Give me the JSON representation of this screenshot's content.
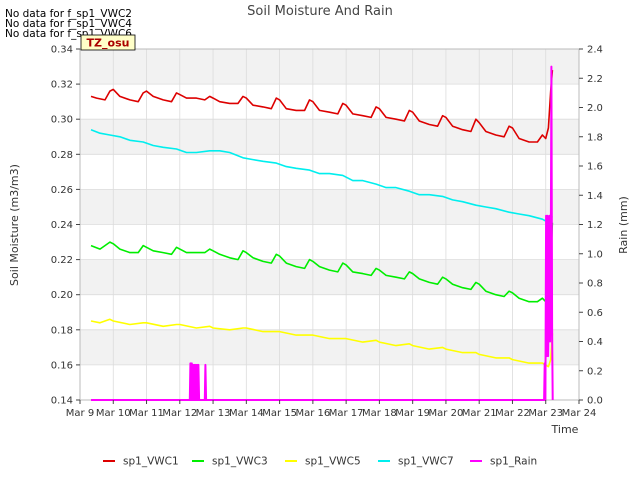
{
  "notes": [
    "No data for f_sp1_VWC2",
    "No data for f_sp1_VWC4",
    "No data for f_sp1_VWC6"
  ],
  "badge": "TZ_osu",
  "colors": {
    "background": "#ffffff",
    "band": "#f2f2f2",
    "grid": "#dcdcdc",
    "badge_fill": "#ffffc8",
    "badge_text": "#aa0000"
  },
  "chart_data": {
    "type": "line",
    "title": "Soil Moisture And Rain",
    "xlabel": "Time",
    "ylabel": "Soil Moisture (m3/m3)",
    "y2label": "Rain (mm)",
    "x_range": [
      9.0,
      24.0
    ],
    "xticks": [
      {
        "x": 9,
        "label": "Mar 9"
      },
      {
        "x": 10,
        "label": "Mar 10"
      },
      {
        "x": 11,
        "label": "Mar 11"
      },
      {
        "x": 12,
        "label": "Mar 12"
      },
      {
        "x": 13,
        "label": "Mar 13"
      },
      {
        "x": 14,
        "label": "Mar 14"
      },
      {
        "x": 15,
        "label": "Mar 15"
      },
      {
        "x": 16,
        "label": "Mar 16"
      },
      {
        "x": 17,
        "label": "Mar 17"
      },
      {
        "x": 18,
        "label": "Mar 18"
      },
      {
        "x": 19,
        "label": "Mar 19"
      },
      {
        "x": 20,
        "label": "Mar 20"
      },
      {
        "x": 21,
        "label": "Mar 21"
      },
      {
        "x": 22,
        "label": "Mar 22"
      },
      {
        "x": 23,
        "label": "Mar 23"
      },
      {
        "x": 24,
        "label": "Mar 24"
      }
    ],
    "ylim": [
      0.14,
      0.34
    ],
    "yticks": [
      0.14,
      0.16,
      0.18,
      0.2,
      0.22,
      0.24,
      0.26,
      0.28,
      0.3,
      0.32,
      0.34
    ],
    "y2lim": [
      0.0,
      2.4
    ],
    "y2ticks": [
      0.0,
      0.2,
      0.4,
      0.6,
      0.8,
      1.0,
      1.2,
      1.4,
      1.6,
      1.8,
      2.0,
      2.2,
      2.4
    ],
    "grid": true,
    "legend_position": "bottom",
    "series": [
      {
        "name": "sp1_VWC1",
        "color": "#dd0000",
        "axis": "left",
        "x": [
          9.33,
          9.5,
          9.75,
          9.9,
          10.0,
          10.2,
          10.5,
          10.75,
          10.9,
          11.0,
          11.2,
          11.5,
          11.75,
          11.9,
          12.0,
          12.2,
          12.5,
          12.75,
          12.9,
          13.0,
          13.2,
          13.5,
          13.75,
          13.9,
          14.0,
          14.2,
          14.5,
          14.75,
          14.9,
          15.0,
          15.2,
          15.5,
          15.75,
          15.9,
          16.0,
          16.2,
          16.5,
          16.75,
          16.9,
          17.0,
          17.2,
          17.5,
          17.75,
          17.9,
          18.0,
          18.2,
          18.5,
          18.75,
          18.9,
          19.0,
          19.2,
          19.5,
          19.75,
          19.9,
          20.0,
          20.2,
          20.5,
          20.75,
          20.9,
          21.0,
          21.2,
          21.5,
          21.75,
          21.9,
          22.0,
          22.2,
          22.5,
          22.75,
          22.9,
          23.0,
          23.08,
          23.15,
          23.2
        ],
        "values": [
          0.313,
          0.312,
          0.311,
          0.316,
          0.317,
          0.313,
          0.311,
          0.31,
          0.315,
          0.316,
          0.313,
          0.311,
          0.31,
          0.315,
          0.314,
          0.312,
          0.312,
          0.311,
          0.313,
          0.312,
          0.31,
          0.309,
          0.309,
          0.313,
          0.312,
          0.308,
          0.307,
          0.306,
          0.312,
          0.311,
          0.306,
          0.305,
          0.305,
          0.311,
          0.31,
          0.305,
          0.304,
          0.303,
          0.309,
          0.308,
          0.303,
          0.302,
          0.301,
          0.307,
          0.306,
          0.301,
          0.3,
          0.299,
          0.305,
          0.304,
          0.299,
          0.297,
          0.296,
          0.302,
          0.301,
          0.296,
          0.294,
          0.293,
          0.3,
          0.298,
          0.293,
          0.291,
          0.29,
          0.296,
          0.295,
          0.289,
          0.287,
          0.287,
          0.291,
          0.289,
          0.295,
          0.316,
          0.328
        ]
      },
      {
        "name": "sp1_VWC3",
        "color": "#00ee00",
        "axis": "left",
        "x": [
          9.33,
          9.6,
          9.9,
          10.0,
          10.2,
          10.5,
          10.75,
          10.9,
          11.0,
          11.2,
          11.5,
          11.75,
          11.9,
          12.0,
          12.2,
          12.5,
          12.75,
          12.9,
          13.0,
          13.2,
          13.5,
          13.75,
          13.9,
          14.0,
          14.2,
          14.5,
          14.75,
          14.9,
          15.0,
          15.2,
          15.5,
          15.75,
          15.9,
          16.0,
          16.2,
          16.5,
          16.75,
          16.9,
          17.0,
          17.2,
          17.5,
          17.75,
          17.9,
          18.0,
          18.2,
          18.5,
          18.75,
          18.9,
          19.0,
          19.2,
          19.5,
          19.75,
          19.9,
          20.0,
          20.2,
          20.5,
          20.75,
          20.9,
          21.0,
          21.2,
          21.5,
          21.75,
          21.9,
          22.0,
          22.2,
          22.5,
          22.75,
          22.9,
          23.0,
          23.08,
          23.15,
          23.2
        ],
        "values": [
          0.228,
          0.226,
          0.23,
          0.229,
          0.226,
          0.224,
          0.224,
          0.228,
          0.227,
          0.225,
          0.224,
          0.223,
          0.227,
          0.226,
          0.224,
          0.224,
          0.224,
          0.226,
          0.225,
          0.223,
          0.221,
          0.22,
          0.225,
          0.224,
          0.221,
          0.219,
          0.218,
          0.223,
          0.222,
          0.218,
          0.216,
          0.215,
          0.22,
          0.219,
          0.216,
          0.214,
          0.213,
          0.218,
          0.217,
          0.213,
          0.212,
          0.211,
          0.215,
          0.214,
          0.211,
          0.21,
          0.209,
          0.213,
          0.212,
          0.209,
          0.207,
          0.206,
          0.21,
          0.209,
          0.206,
          0.204,
          0.203,
          0.207,
          0.206,
          0.202,
          0.2,
          0.199,
          0.202,
          0.201,
          0.198,
          0.196,
          0.196,
          0.198,
          0.196,
          0.2,
          0.22,
          0.241
        ]
      },
      {
        "name": "sp1_VWC5",
        "color": "#ffff00",
        "axis": "left",
        "x": [
          9.33,
          9.6,
          9.9,
          10.0,
          10.5,
          10.9,
          11.0,
          11.5,
          11.9,
          12.0,
          12.5,
          12.9,
          13.0,
          13.5,
          13.9,
          14.0,
          14.5,
          14.9,
          15.0,
          15.5,
          15.9,
          16.0,
          16.5,
          16.9,
          17.0,
          17.5,
          17.9,
          18.0,
          18.5,
          18.9,
          19.0,
          19.5,
          19.9,
          20.0,
          20.5,
          20.9,
          21.0,
          21.5,
          21.9,
          22.0,
          22.5,
          22.9,
          23.0,
          23.08,
          23.15,
          23.2
        ],
        "values": [
          0.185,
          0.184,
          0.186,
          0.185,
          0.183,
          0.184,
          0.184,
          0.182,
          0.183,
          0.183,
          0.181,
          0.182,
          0.181,
          0.18,
          0.181,
          0.181,
          0.179,
          0.179,
          0.179,
          0.177,
          0.177,
          0.177,
          0.175,
          0.175,
          0.175,
          0.173,
          0.174,
          0.173,
          0.171,
          0.172,
          0.171,
          0.169,
          0.17,
          0.169,
          0.167,
          0.167,
          0.166,
          0.164,
          0.164,
          0.163,
          0.161,
          0.161,
          0.16,
          0.159,
          0.163,
          0.178
        ]
      },
      {
        "name": "sp1_VWC7",
        "color": "#00eeee",
        "axis": "left",
        "x": [
          9.33,
          9.6,
          9.9,
          10.2,
          10.5,
          10.9,
          11.2,
          11.5,
          11.9,
          12.2,
          12.5,
          12.9,
          13.2,
          13.5,
          13.9,
          14.2,
          14.5,
          14.9,
          15.2,
          15.5,
          15.9,
          16.2,
          16.5,
          16.9,
          17.2,
          17.5,
          17.9,
          18.2,
          18.5,
          18.9,
          19.2,
          19.5,
          19.9,
          20.2,
          20.5,
          20.9,
          21.2,
          21.5,
          21.9,
          22.2,
          22.5,
          22.9,
          23.0,
          23.08,
          23.15,
          23.2
        ],
        "values": [
          0.294,
          0.292,
          0.291,
          0.29,
          0.288,
          0.287,
          0.285,
          0.284,
          0.283,
          0.281,
          0.281,
          0.282,
          0.282,
          0.281,
          0.278,
          0.277,
          0.276,
          0.275,
          0.273,
          0.272,
          0.271,
          0.269,
          0.269,
          0.268,
          0.265,
          0.265,
          0.263,
          0.261,
          0.261,
          0.259,
          0.257,
          0.257,
          0.256,
          0.254,
          0.253,
          0.251,
          0.25,
          0.249,
          0.247,
          0.246,
          0.245,
          0.243,
          0.242,
          0.243,
          0.245,
          0.244
        ]
      },
      {
        "name": "sp1_Rain",
        "color": "#ff00ff",
        "axis": "right",
        "x": [
          9.33,
          12.3,
          12.32,
          12.34,
          12.36,
          12.38,
          12.4,
          12.42,
          12.44,
          12.46,
          12.48,
          12.5,
          12.52,
          12.54,
          12.56,
          12.58,
          12.6,
          12.62,
          12.75,
          12.77,
          12.79,
          12.81,
          22.95,
          22.97,
          22.99,
          23.01,
          23.03,
          23.05,
          23.07,
          23.09,
          23.11,
          23.13,
          23.15,
          23.17,
          23.19,
          23.21
        ],
        "values": [
          0.0,
          0.0,
          0.25,
          0.0,
          0.25,
          0.0,
          0.24,
          0.0,
          0.24,
          0.0,
          0.24,
          0.0,
          0.24,
          0.0,
          0.24,
          0.0,
          0.0,
          0.0,
          0.0,
          0.24,
          0.0,
          0.0,
          0.0,
          0.25,
          0.0,
          1.26,
          0.3,
          1.26,
          0.3,
          0.6,
          1.26,
          0.4,
          0.8,
          2.28,
          0.5,
          0.0
        ]
      }
    ]
  }
}
